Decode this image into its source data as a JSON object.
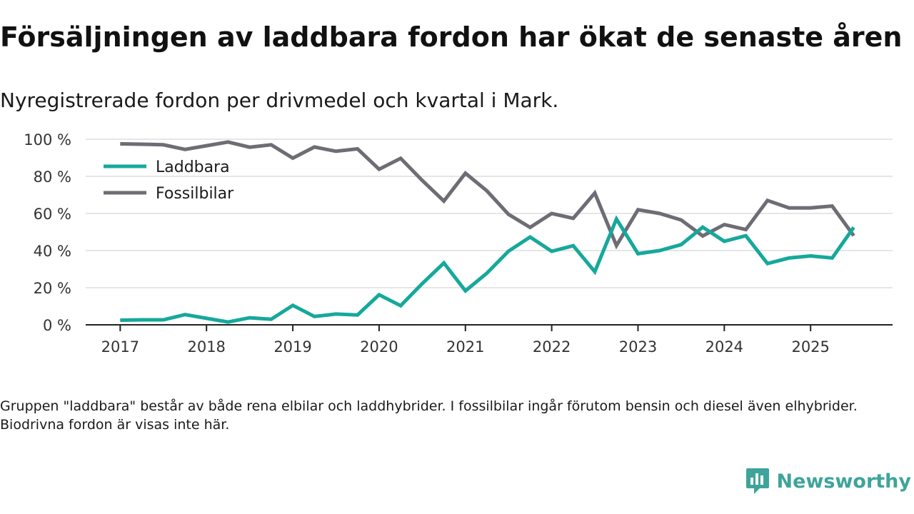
{
  "header": {
    "title": "Försäljningen av laddbara fordon har ökat de senaste åren",
    "subtitle": "Nyregistrerade fordon per drivmedel och kvartal i Mark."
  },
  "footer": {
    "note": "Gruppen \"laddbara\" består av både rena elbilar och laddhybrider. I fossilbilar ingår förutom bensin och diesel även elhybrider. Biodrivna fordon är visas inte här.",
    "brand": "Newsworthy"
  },
  "colors": {
    "laddbara": "#16a89c",
    "fossil": "#6e6c74",
    "grid": "#dddddd",
    "axis": "#222222",
    "brand": "#3ea49b"
  },
  "icons": {
    "brand": "bar-chart-speech-icon"
  },
  "chart_data": {
    "type": "line",
    "title": "Försäljningen av laddbara fordon har ökat de senaste åren",
    "xlabel": "",
    "ylabel": "",
    "x_start": 2017.0,
    "x_step": 0.25,
    "xlim": [
      2016.6,
      2025.95
    ],
    "ylim": [
      0,
      100
    ],
    "x_ticks": [
      2017,
      2018,
      2019,
      2020,
      2021,
      2022,
      2023,
      2024,
      2025
    ],
    "x_tick_labels": [
      "2017",
      "2018",
      "2019",
      "2020",
      "2021",
      "2022",
      "2023",
      "2024",
      "2025"
    ],
    "y_ticks": [
      0,
      20,
      40,
      60,
      80,
      100
    ],
    "y_tick_labels": [
      "0 %",
      "20 %",
      "40 %",
      "60 %",
      "80 %",
      "100 %"
    ],
    "grid": true,
    "legend_position": "top-left",
    "series": [
      {
        "name": "Laddbara",
        "values": [
          2.5,
          2.7,
          2.7,
          5.5,
          3.5,
          1.5,
          3.8,
          3.0,
          10.5,
          4.5,
          5.8,
          5.3,
          16.2,
          10.3,
          22.2,
          33.3,
          18.3,
          27.9,
          39.7,
          47.3,
          39.6,
          42.6,
          28.6,
          57.0,
          38.3,
          40.0,
          43.2,
          52.6,
          45.0,
          48.0,
          33.0,
          36.0,
          37.1,
          36.0,
          52.5
        ]
      },
      {
        "name": "Fossilbilar",
        "values": [
          97.5,
          97.3,
          97.0,
          94.5,
          96.5,
          98.5,
          95.7,
          97.0,
          89.8,
          95.8,
          93.5,
          94.8,
          83.8,
          89.7,
          77.8,
          66.7,
          81.7,
          72.1,
          59.5,
          52.5,
          60.0,
          57.4,
          71.0,
          42.7,
          62.0,
          60.0,
          56.5,
          47.9,
          54.0,
          51.3,
          67.0,
          63.0,
          63.0,
          64.0,
          48.0
        ]
      }
    ]
  }
}
